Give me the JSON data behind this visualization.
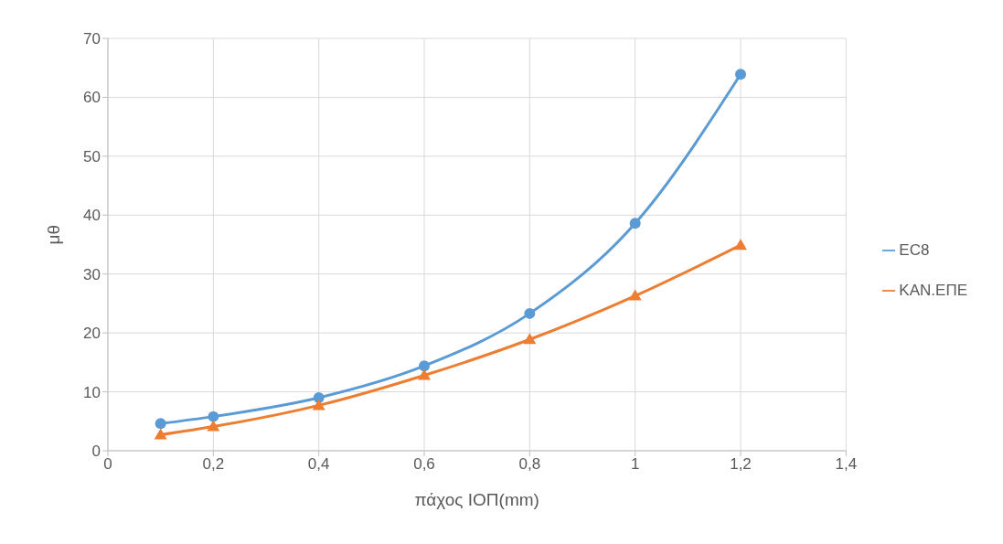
{
  "chart_data": {
    "type": "line",
    "xlabel": "πάχος ΙΟΠ(mm)",
    "ylabel": "μθ",
    "x": [
      0.1,
      0.2,
      0.4,
      0.6,
      0.8,
      1.0,
      1.2
    ],
    "series": [
      {
        "name": "EC8",
        "color": "#5b9bd5",
        "marker": "circle",
        "values": [
          4.6,
          5.8,
          9.0,
          14.4,
          23.3,
          38.6,
          63.9
        ]
      },
      {
        "name": "ΚΑΝ.ΕΠΕ",
        "color": "#ed7d31",
        "marker": "triangle",
        "values": [
          2.7,
          4.1,
          7.7,
          12.8,
          18.9,
          26.3,
          34.9
        ]
      }
    ],
    "xlim": [
      0,
      1.4
    ],
    "xticks": [
      0,
      {
        "value": 0.2,
        "label": "0,2"
      },
      {
        "value": 0.4,
        "label": "0,4"
      },
      {
        "value": 0.6,
        "label": "0,6"
      },
      {
        "value": 0.8,
        "label": "0,8"
      },
      1,
      {
        "value": 1.2,
        "label": "1,2"
      },
      {
        "value": 1.4,
        "label": "1,4"
      }
    ],
    "ylim": [
      0,
      70
    ],
    "yticks": [
      0,
      10,
      20,
      30,
      40,
      50,
      60,
      70
    ],
    "grid": true,
    "legend": "right",
    "line_style": "solid"
  }
}
